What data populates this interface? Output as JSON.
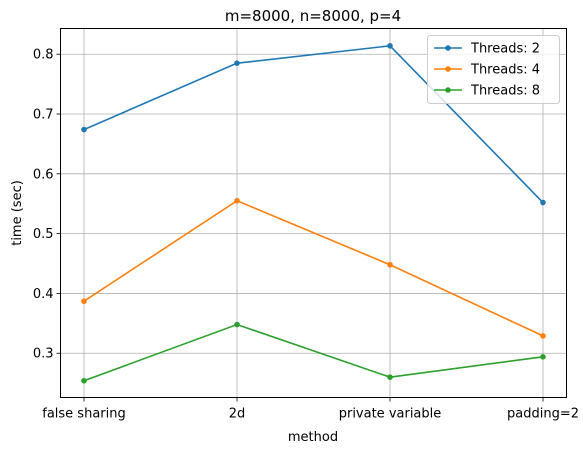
{
  "chart_data": {
    "type": "line",
    "title": "m=8000, n=8000, p=4",
    "xlabel": "method",
    "ylabel": "time (sec)",
    "categories": [
      "false sharing",
      "2d",
      "private variable",
      "padding=2"
    ],
    "ylim": [
      0.226,
      0.843
    ],
    "yticks": [
      0.3,
      0.4,
      0.5,
      0.6,
      0.7,
      0.8
    ],
    "ytick_labels": [
      "0.3",
      "0.4",
      "0.5",
      "0.6",
      "0.7",
      "0.8"
    ],
    "grid": true,
    "legend_position": "top-right",
    "series": [
      {
        "name": "Threads: 2",
        "color": "#1f77b4",
        "values": [
          0.674,
          0.785,
          0.814,
          0.552
        ]
      },
      {
        "name": "Threads: 4",
        "color": "#ff7f0e",
        "values": [
          0.387,
          0.555,
          0.448,
          0.329
        ]
      },
      {
        "name": "Threads: 8",
        "color": "#2ca02c",
        "values": [
          0.254,
          0.348,
          0.26,
          0.294
        ]
      }
    ]
  }
}
